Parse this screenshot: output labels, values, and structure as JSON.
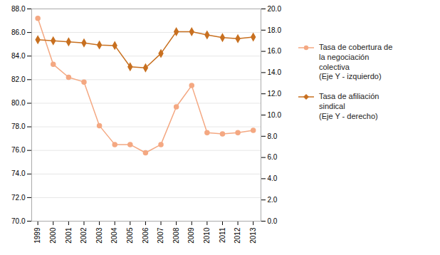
{
  "chart_data": {
    "type": "line",
    "x": [
      1999,
      2000,
      2001,
      2002,
      2003,
      2004,
      2005,
      2006,
      2007,
      2008,
      2009,
      2010,
      2011,
      2012,
      2013
    ],
    "xlim": [
      1998.6,
      2013.5
    ],
    "xticks": [
      1999,
      2000,
      2001,
      2002,
      2003,
      2004,
      2005,
      2006,
      2007,
      2008,
      2009,
      2010,
      2011,
      2012,
      2013
    ],
    "ylim": [
      70.0,
      88.0
    ],
    "yticks": [
      {
        "value": 70.0,
        "label": "70.0"
      },
      {
        "value": 72.0,
        "label": "72.0"
      },
      {
        "value": 74.0,
        "label": "74.0"
      },
      {
        "value": 76.0,
        "label": "76.0"
      },
      {
        "value": 78.0,
        "label": "78.0"
      },
      {
        "value": 80.0,
        "label": "80.0"
      },
      {
        "value": 82.0,
        "label": "82.0"
      },
      {
        "value": 84.0,
        "label": "84.0"
      },
      {
        "value": 86.0,
        "label": "86.0"
      },
      {
        "value": 88.0,
        "label": "88.0"
      }
    ],
    "y2lim": [
      0.0,
      20.0
    ],
    "y2ticks": [
      {
        "value": 0.0,
        "label": "0.0"
      },
      {
        "value": 2.0,
        "label": "2.0"
      },
      {
        "value": 4.0,
        "label": "4.0"
      },
      {
        "value": 6.0,
        "label": "6.0"
      },
      {
        "value": 8.0,
        "label": "8.0"
      },
      {
        "value": 10.0,
        "label": "10.0"
      },
      {
        "value": 12.0,
        "label": "12.0"
      },
      {
        "value": 14.0,
        "label": "14.0"
      },
      {
        "value": 16.0,
        "label": "16.0"
      },
      {
        "value": 18.0,
        "label": "18.0"
      },
      {
        "value": 20.0,
        "label": "20.0"
      }
    ],
    "grid": true,
    "legend": "right",
    "series": [
      {
        "name": "Tasa de cobertura de\nla negociación\ncolectiva\n(Eje Y - izquierdo)",
        "color": "#f4a882",
        "marker": "circle",
        "values": [
          87.2,
          83.3,
          82.2,
          81.8,
          78.1,
          76.5,
          76.5,
          75.8,
          76.5,
          79.7,
          81.5,
          77.5,
          77.4,
          77.5,
          77.7
        ]
      },
      {
        "name": "Tasa de afiliación\nsindical\n(Eje Y - derecho)",
        "color": "#c87020",
        "marker": "diamond",
        "axis": "y2",
        "values": [
          17.1,
          17.0,
          16.9,
          16.8,
          16.6,
          16.55,
          14.55,
          14.45,
          15.8,
          17.85,
          17.85,
          17.55,
          17.3,
          17.2,
          17.35
        ]
      }
    ]
  }
}
